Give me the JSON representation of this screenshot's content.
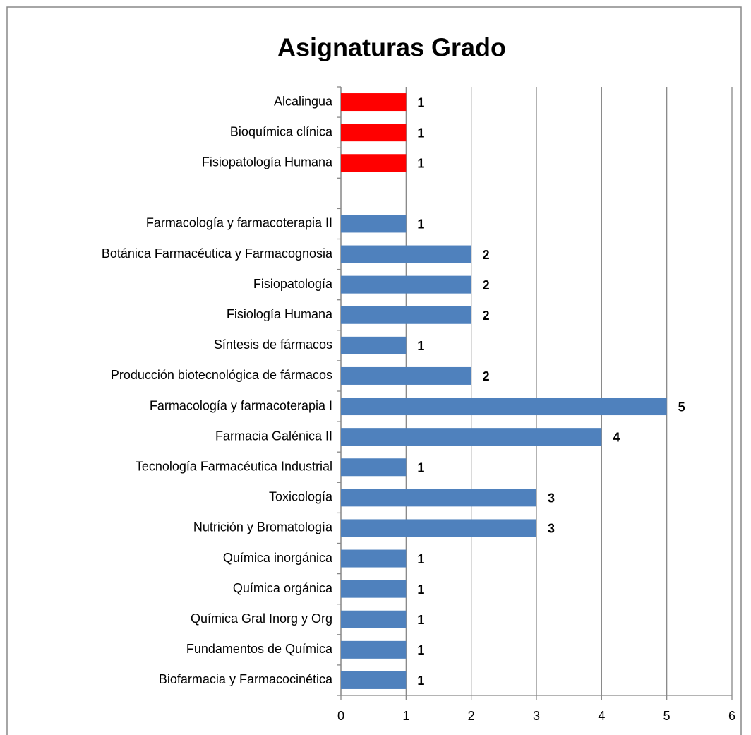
{
  "chart_data": {
    "type": "barh",
    "title": "Asignaturas Grado",
    "categories": [
      "Alcalingua",
      "Bioquímica clínica",
      "Fisiopatología Humana",
      null,
      "Farmacología y farmacoterapia II",
      "Botánica Farmacéutica y Farmacognosia",
      "Fisiopatología",
      "Fisiología Humana",
      "Síntesis de fármacos",
      "Producción biotecnológica de fármacos",
      "Farmacología y farmacoterapia I",
      "Farmacia Galénica II",
      "Tecnología Farmacéutica Industrial",
      "Toxicología",
      "Nutrición y Bromatología",
      "Química inorgánica",
      "Química orgánica",
      "Química Gral Inorg y Org",
      "Fundamentos de Química",
      "Biofarmacia y Farmacocinética"
    ],
    "values": [
      1,
      1,
      1,
      null,
      1,
      2,
      2,
      2,
      1,
      2,
      5,
      4,
      1,
      3,
      3,
      1,
      1,
      1,
      1,
      1
    ],
    "colors": [
      "#ff0000",
      "#ff0000",
      "#ff0000",
      null,
      "#4f81bd",
      "#4f81bd",
      "#4f81bd",
      "#4f81bd",
      "#4f81bd",
      "#4f81bd",
      "#4f81bd",
      "#4f81bd",
      "#4f81bd",
      "#4f81bd",
      "#4f81bd",
      "#4f81bd",
      "#4f81bd",
      "#4f81bd",
      "#4f81bd",
      "#4f81bd"
    ],
    "xlim": [
      0,
      6
    ],
    "xticks": [
      0,
      1,
      2,
      3,
      4,
      5,
      6
    ],
    "grid": true
  }
}
